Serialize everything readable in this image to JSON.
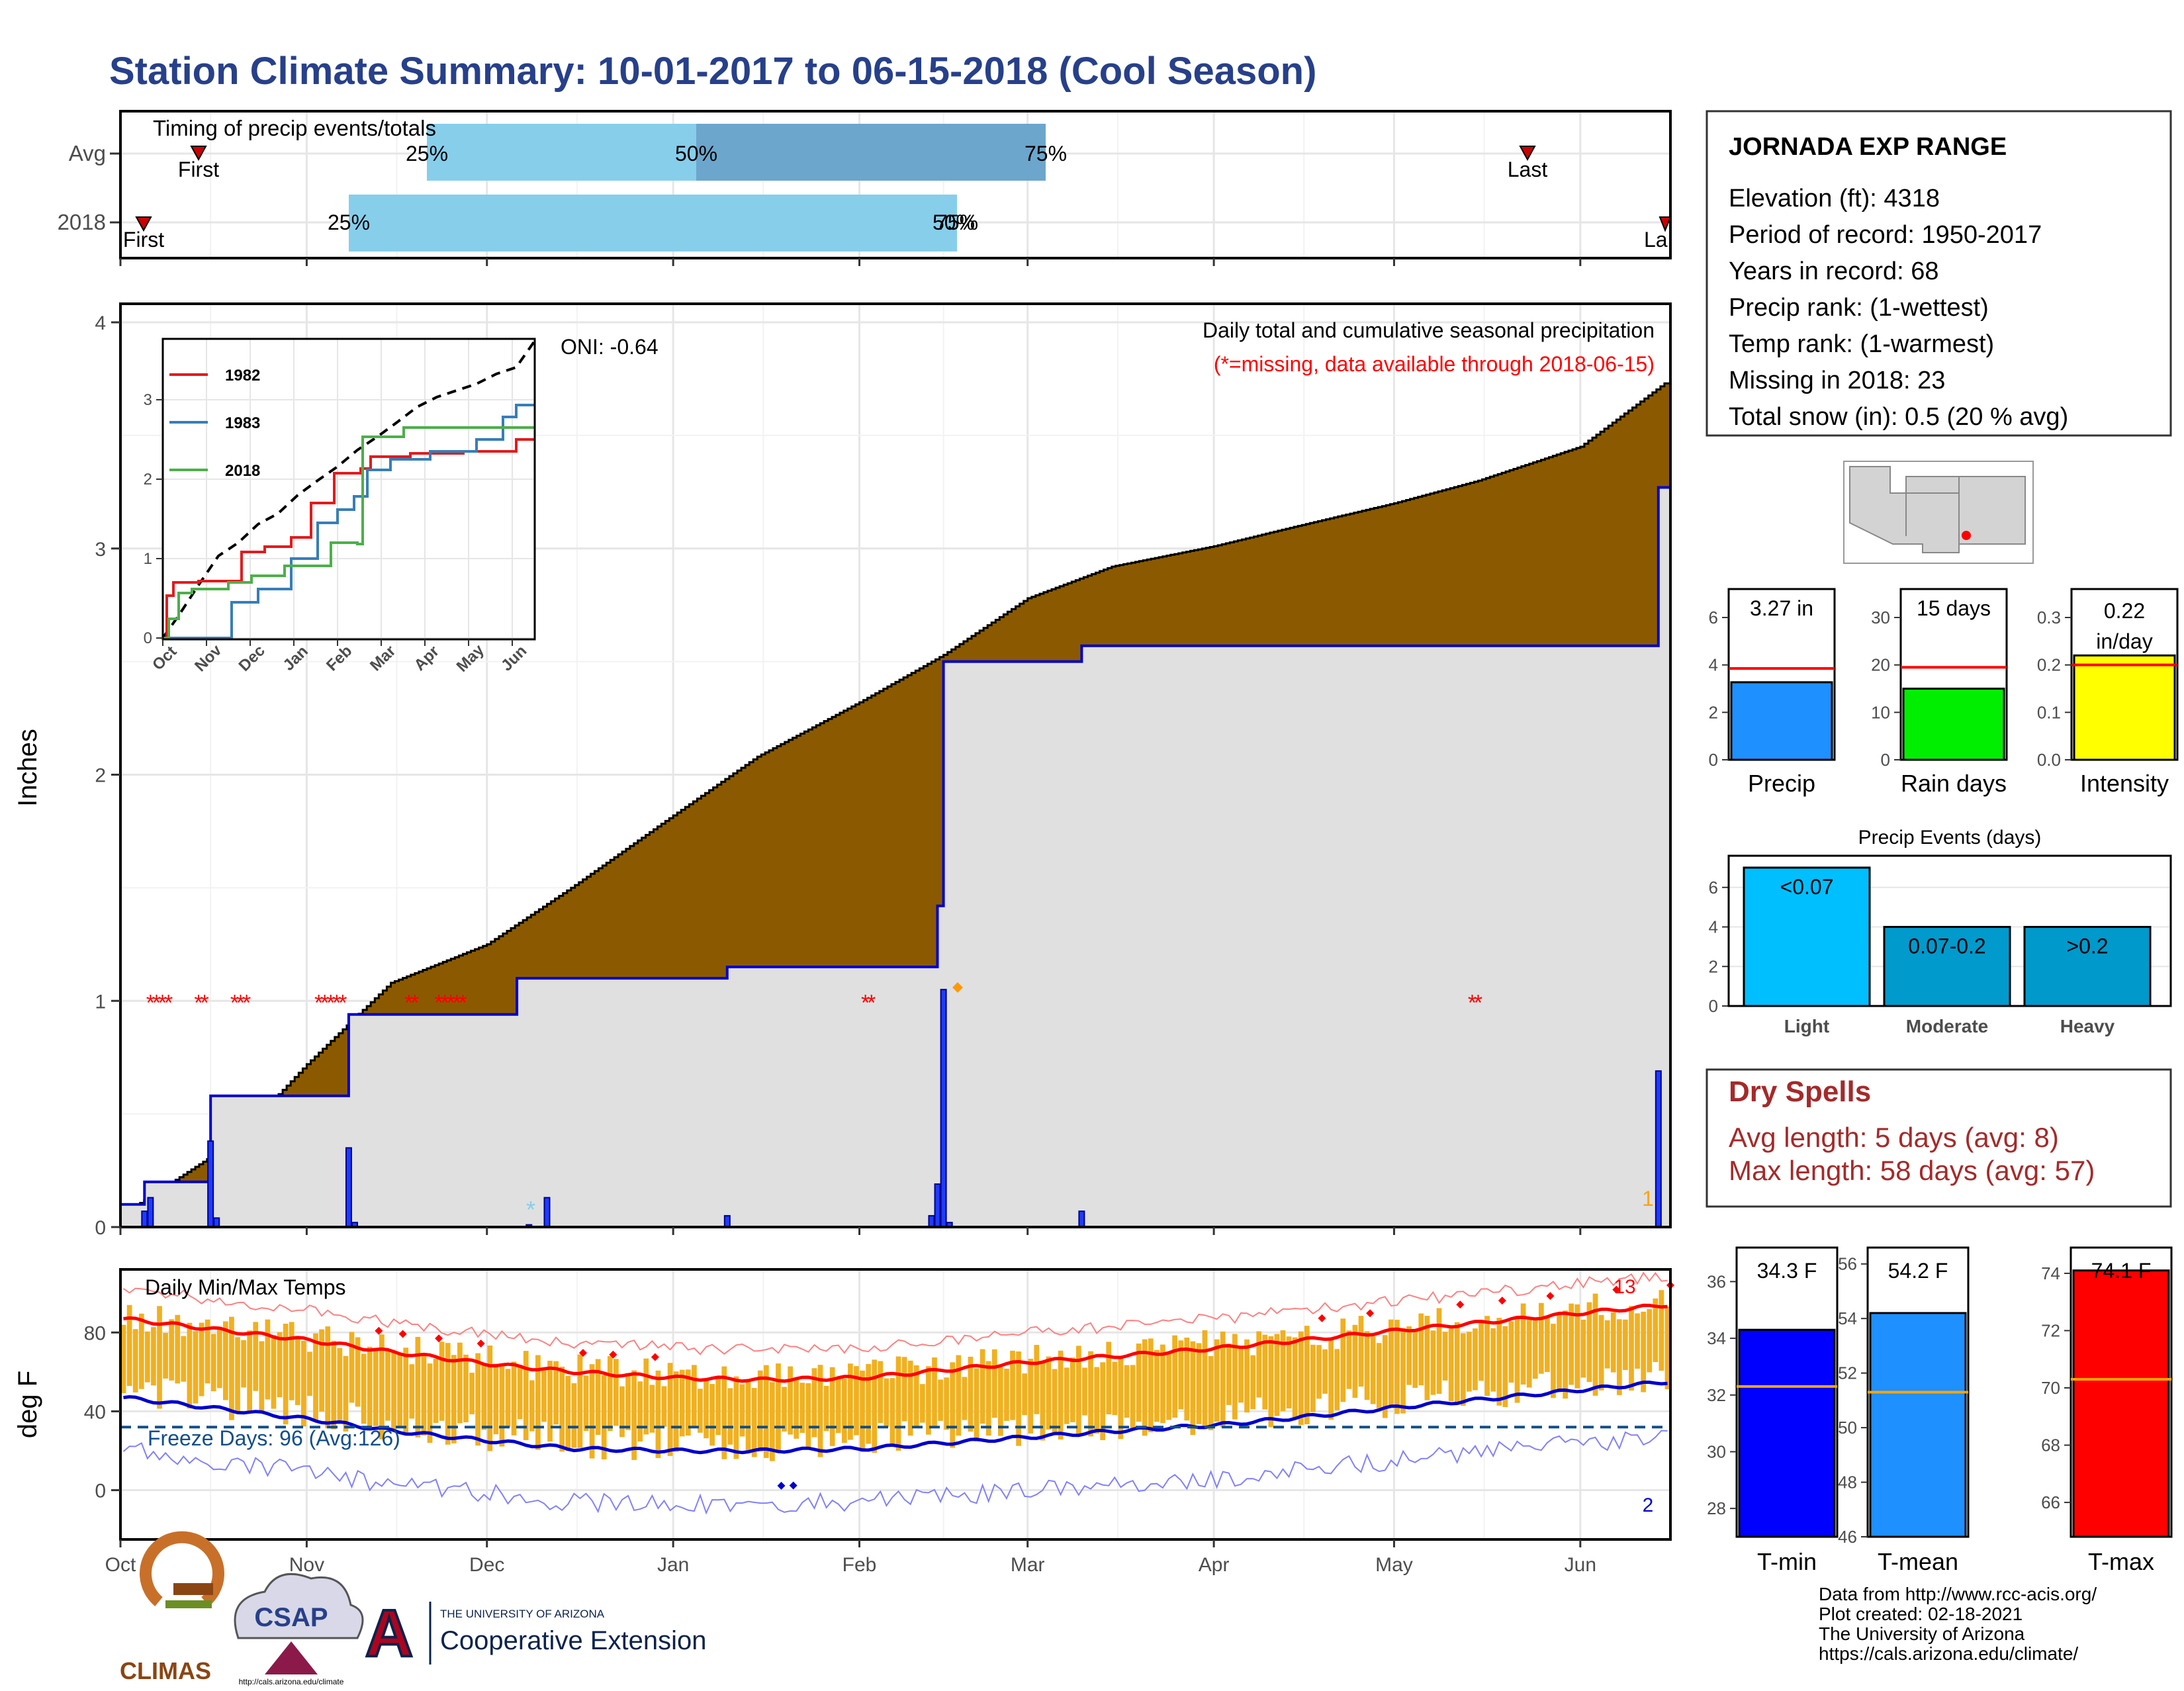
{
  "title": "Station Climate Summary: 10-01-2017 to 06-15-2018 (Cool Season)",
  "timing": {
    "label": "Timing of precip events/totals",
    "rows": [
      "Avg",
      "2018"
    ],
    "avg": {
      "first": "First",
      "last": "Last",
      "p25": "25%",
      "p50": "50%",
      "p75": "75%"
    },
    "y2018": {
      "first": "First",
      "last": "La",
      "p25": "25%",
      "p50": "50%",
      "p75": "75%"
    }
  },
  "months": [
    "Oct",
    "Nov",
    "Dec",
    "Jan",
    "Feb",
    "Mar",
    "Apr",
    "May",
    "Jun"
  ],
  "precip": {
    "ylabel": "Inches",
    "yticks": [
      "0",
      "1",
      "2",
      "3",
      "4"
    ],
    "oni": "ONI: -0.64",
    "note1": "Daily total and cumulative seasonal precipitation",
    "note2": "(*=missing, data available through 2018-06-15)",
    "count_label": "1"
  },
  "inset": {
    "months": [
      "Oct",
      "Nov",
      "Dec",
      "Jan",
      "Feb",
      "Mar",
      "Apr",
      "May",
      "Jun"
    ],
    "yticks": [
      "0",
      "1",
      "2",
      "3"
    ],
    "legend": [
      "1982",
      "1983",
      "2018"
    ],
    "colors": [
      "#e41a1c",
      "#377eb8",
      "#4daf4a"
    ]
  },
  "temps": {
    "ylabel": "deg F",
    "label": "Daily Min/Max Temps",
    "freeze": "Freeze Days: 96 (Avg:126)",
    "yticks": [
      "0",
      "40",
      "80"
    ],
    "top_count": "13",
    "bottom_count": "2"
  },
  "station": {
    "name": "JORNADA EXP RANGE",
    "lines": [
      "Elevation (ft): 4318",
      "Period of record: 1950-2017",
      "Years in record: 68",
      "Precip rank:  (1-wettest)",
      "Temp rank:  (1-warmest)",
      "Missing in 2018: 23",
      "Total snow (in): 0.5 (20 % avg)"
    ]
  },
  "mini_bars": [
    {
      "label": "Precip",
      "value_text": "3.27 in",
      "value": 3.27,
      "avg": 3.85,
      "ymax": 7.2,
      "ticks": [
        "0",
        "2",
        "4",
        "6"
      ],
      "color": "#1e90ff"
    },
    {
      "label": "Rain days",
      "value_text": "15 days",
      "value": 15,
      "avg": 19.5,
      "ymax": 36,
      "ticks": [
        "0",
        "10",
        "20",
        "30"
      ],
      "color": "#00ee00"
    },
    {
      "label": "Intensity",
      "value_text": "0.22 in/day",
      "value_text_line1": "0.22",
      "value_text_line2": "in/day",
      "value": 0.22,
      "avg": 0.2,
      "ymax": 0.36,
      "ticks": [
        "0.0",
        "0.1",
        "0.2",
        "0.3"
      ],
      "color": "#ffff00"
    }
  ],
  "events": {
    "title": "Precip Events (days)",
    "ticks": [
      "0",
      "2",
      "4",
      "6"
    ],
    "bars": [
      {
        "label": "Light",
        "range": "<0.07",
        "value": 7,
        "color": "#00bfff"
      },
      {
        "label": "Moderate",
        "range": "0.07-0.2",
        "value": 4,
        "color": "#009acd"
      },
      {
        "label": "Heavy",
        "range": ">0.2",
        "value": 4,
        "color": "#0099cc"
      }
    ]
  },
  "dry_spells": {
    "title": "Dry Spells",
    "avg": "Avg length: 5 days (avg: 8)",
    "max": "Max length: 58 days (avg: 57)"
  },
  "temp_bars": [
    {
      "label": "T-min",
      "value_text": "34.3 F",
      "value": 34.3,
      "avg": 32.3,
      "ymin": 27,
      "ymax": 37.2,
      "ticks": [
        "28",
        "30",
        "32",
        "34",
        "36"
      ],
      "color": "#0000ff"
    },
    {
      "label": "T-mean",
      "value_text": "54.2 F",
      "value": 54.2,
      "avg": 51.3,
      "ymin": 46,
      "ymax": 56.6,
      "ticks": [
        "46",
        "48",
        "50",
        "52",
        "54",
        "56"
      ],
      "color": "#1e90ff"
    },
    {
      "label": "T-max",
      "value_text": "74.1 F",
      "value": 74.1,
      "avg": 70.3,
      "ymin": 64.8,
      "ymax": 74.9,
      "ticks": [
        "66",
        "68",
        "70",
        "72",
        "74"
      ],
      "color": "#ff0000"
    }
  ],
  "footer": {
    "lines": [
      "Data from http://www.rcc-acis.org/",
      "Plot created: 02-18-2021",
      "The University of Arizona",
      "https://cals.arizona.edu/climate/"
    ],
    "climas": "CLIMAS",
    "csap": "CSAP",
    "csap_url": "http://cals.arizona.edu/climate",
    "ua_small": "THE UNIVERSITY OF ARIZONA",
    "ua_big": "Cooperative Extension"
  },
  "chart_data": [
    {
      "type": "area",
      "title": "Daily total and cumulative seasonal precipitation",
      "ylabel": "Inches",
      "ylim": [
        0,
        4.05
      ],
      "series": [
        {
          "name": "",
          "x": [
            "2017-10-01",
            "2017-10-20",
            "2017-11-01",
            "2017-11-15",
            "2017-12-01",
            "2017-12-15",
            "2018-01-01",
            "2018-01-15",
            "2018-02-01",
            "2018-02-15",
            "2018-03-01",
            "2018-03-15",
            "2018-04-01",
            "2018-04-15",
            "2018-05-01",
            "2018-05-15",
            "2018-06-01",
            "2018-06-15"
          ],
          "y": [
            0.05,
            0.38,
            0.72,
            1.08,
            1.25,
            1.5,
            1.82,
            2.08,
            2.32,
            2.53,
            2.78,
            2.92,
            3.01,
            3.1,
            3.2,
            3.3,
            3.45,
            3.73
          ]
        },
        {
          "name": "",
          "x": [
            "2017-10-01",
            "2017-10-05",
            "2017-10-16",
            "2017-11-08",
            "2017-12-06",
            "2018-01-10",
            "2018-02-14",
            "2018-02-15",
            "2018-03-10",
            "2018-05-31",
            "2018-06-14"
          ],
          "y": [
            0.1,
            0.2,
            0.58,
            0.94,
            1.1,
            1.15,
            1.42,
            2.5,
            2.57,
            2.57,
            3.27
          ]
        }
      ],
      "daily_x": [
        "2017-10-05",
        "2017-10-06",
        "2017-10-16",
        "2017-10-17",
        "2017-11-08",
        "2017-11-09",
        "2017-12-08",
        "2017-12-11",
        "2018-01-10",
        "2018-02-13",
        "2018-02-14",
        "2018-02-15",
        "2018-02-16",
        "2018-03-10",
        "2018-06-14"
      ],
      "daily_y": [
        0.07,
        0.13,
        0.38,
        0.04,
        0.35,
        0.02,
        0.01,
        0.13,
        0.05,
        0.05,
        0.19,
        1.05,
        0.02,
        0.07,
        0.69
      ]
    },
    {
      "type": "line",
      "title": "Daily Min/Max Temps",
      "ylabel": "deg F",
      "ylim": [
        -25,
        112
      ],
      "x": [
        "2017-10-01",
        "2017-10-15",
        "2017-11-01",
        "2017-11-15",
        "2017-12-01",
        "2017-12-15",
        "2018-01-01",
        "2018-01-15",
        "2018-02-01",
        "2018-02-15",
        "2018-03-01",
        "2018-03-15",
        "2018-04-01",
        "2018-04-15",
        "2018-05-01",
        "2018-05-15",
        "2018-06-01",
        "2018-06-15"
      ],
      "series": [
        {
          "name": "",
          "values": [
            87,
            82,
            76,
            70,
            64,
            60,
            57,
            56,
            57,
            61,
            65,
            68,
            72,
            76,
            81,
            85,
            90,
            94
          ]
        },
        {
          "name": "",
          "values": [
            47,
            42,
            36,
            30,
            25,
            21,
            20,
            20,
            21,
            24,
            27,
            30,
            33,
            37,
            42,
            46,
            51,
            55
          ]
        }
      ],
      "freeze_line": 32
    }
  ]
}
